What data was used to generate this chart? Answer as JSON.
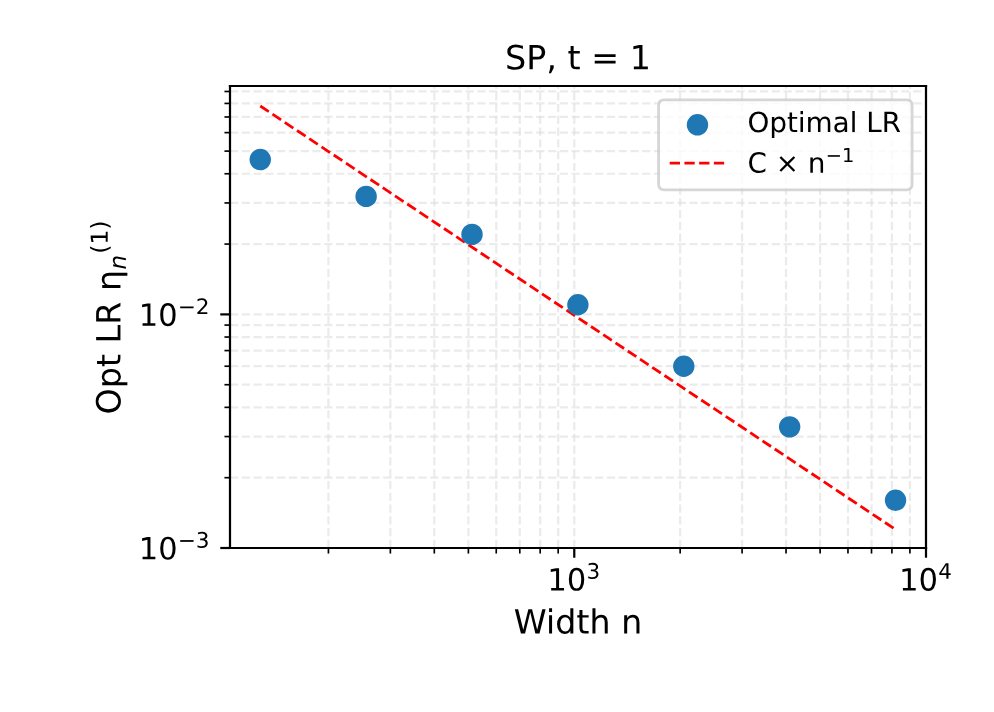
{
  "chart_data": {
    "type": "scatter",
    "title": "SP, t = 1",
    "xlabel": "Width n",
    "ylabel": "Opt LR η$_{n}$$^{(1)}$",
    "log": "xy",
    "grid": true,
    "legend": "top right",
    "xlim": [
      105,
      10000
    ],
    "ylim": [
      0.001,
      0.095
    ],
    "xticks": [
      {
        "value": 1000,
        "label": "10$^{3}$"
      },
      {
        "value": 10000,
        "label": "10$^{4}$"
      }
    ],
    "yticks": [
      {
        "value": 0.001,
        "label": "10$^{−3}$"
      },
      {
        "value": 0.01,
        "label": "10$^{−2}$"
      }
    ],
    "series": [
      {
        "name": "Optimal LR",
        "marker": "circle",
        "color": "#1f77b4",
        "x": [
          128,
          256,
          512,
          1024,
          2048,
          4096,
          8192
        ],
        "values": [
          0.046,
          0.032,
          0.022,
          0.011,
          0.006,
          0.0033,
          0.0016
        ]
      },
      {
        "name": "C × n$^{−1}$",
        "type": "line",
        "line_style": "dashed",
        "marker": "none",
        "color": "#ff0000",
        "x": [
          128,
          8192
        ],
        "values": [
          0.078,
          0.0012
        ]
      }
    ]
  }
}
